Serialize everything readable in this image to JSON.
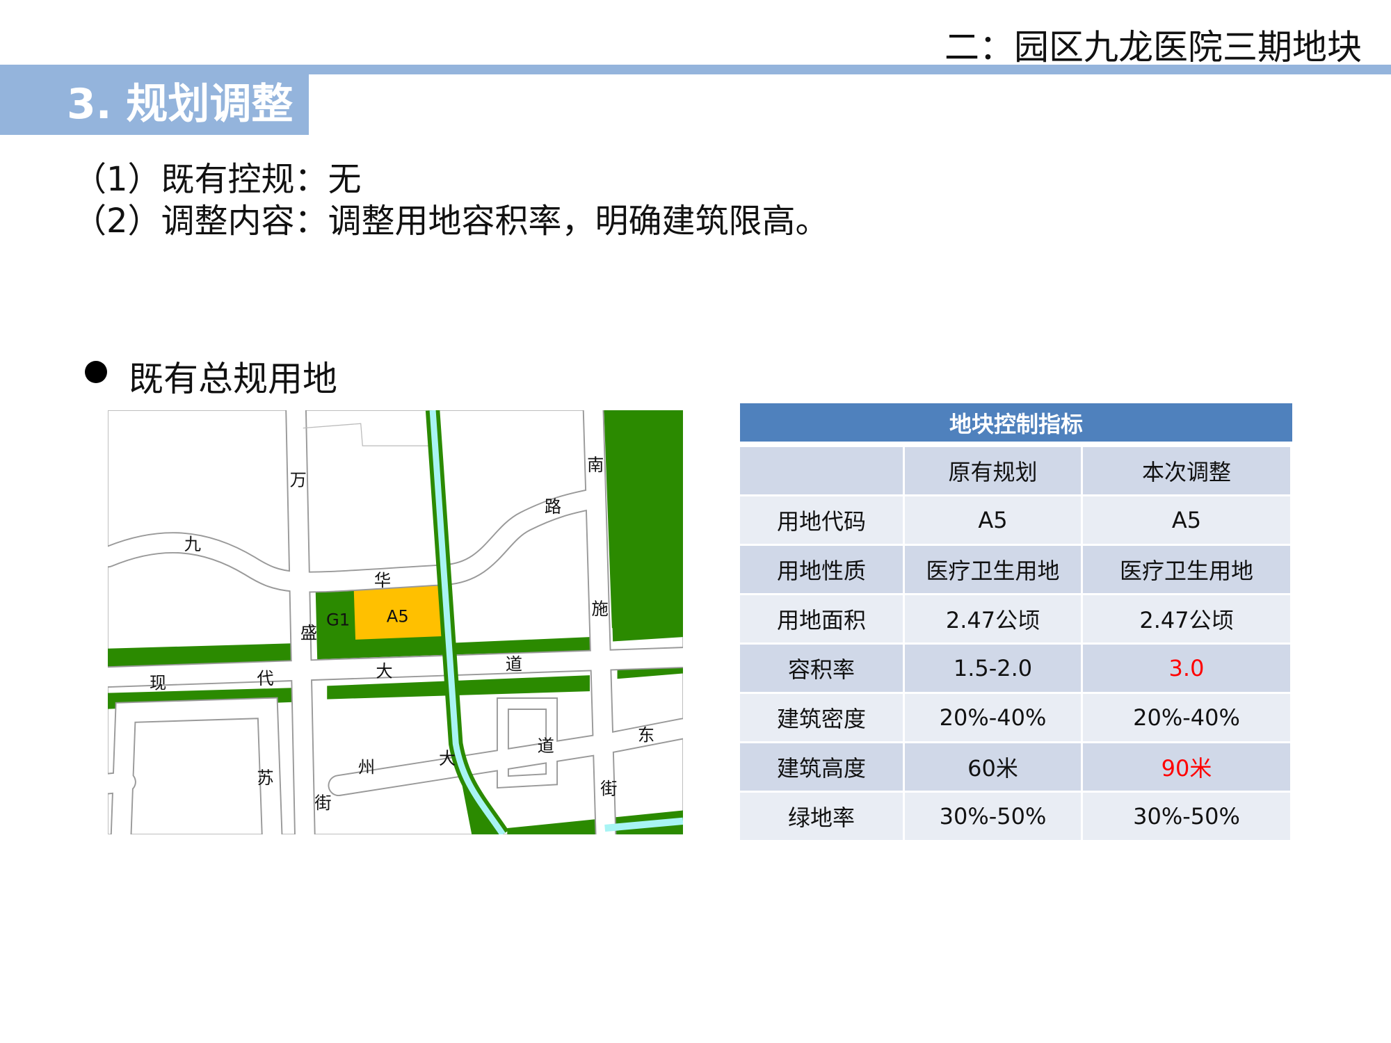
{
  "header": {
    "title": "二：园区九龙医院三期地块"
  },
  "section": {
    "title": "3. 规划调整"
  },
  "content": {
    "line1": "（1）既有控规：无",
    "line2": "（2）调整内容：调整用地容积率，明确建筑限高。",
    "bullet": "既有总规用地"
  },
  "map": {
    "labels": {
      "wan": "万",
      "sheng": "盛",
      "jie1": "街",
      "jiu": "九",
      "hua": "华",
      "lu": "路",
      "nan": "南",
      "shi": "施",
      "jie2": "街",
      "xian": "现",
      "dai": "代",
      "da1": "大",
      "dao1": "道",
      "su": "苏",
      "zhou": "州",
      "da2": "大",
      "dao2": "道",
      "dong": "东",
      "g1": "G1",
      "a5": "A5"
    },
    "colors": {
      "green": "#2b8a00",
      "a5": "#ffc000",
      "river": "#a8f4f4"
    }
  },
  "table": {
    "title": "地块控制指标",
    "columns": [
      "",
      "原有规划",
      "本次调整"
    ],
    "rows": [
      {
        "label": "用地代码",
        "original": "A5",
        "adjusted": "A5",
        "changed": false
      },
      {
        "label": "用地性质",
        "original": "医疗卫生用地",
        "adjusted": "医疗卫生用地",
        "changed": false
      },
      {
        "label": "用地面积",
        "original": "2.47公顷",
        "adjusted": "2.47公顷",
        "changed": false
      },
      {
        "label": "容积率",
        "original": "1.5-2.0",
        "adjusted": "3.0",
        "changed": true
      },
      {
        "label": "建筑密度",
        "original": "20%-40%",
        "adjusted": "20%-40%",
        "changed": false
      },
      {
        "label": "建筑高度",
        "original": "60米",
        "adjusted": "90米",
        "changed": true
      },
      {
        "label": "绿地率",
        "original": "30%-50%",
        "adjusted": "30%-50%",
        "changed": false
      }
    ],
    "highlight_color": "#ff0000"
  }
}
